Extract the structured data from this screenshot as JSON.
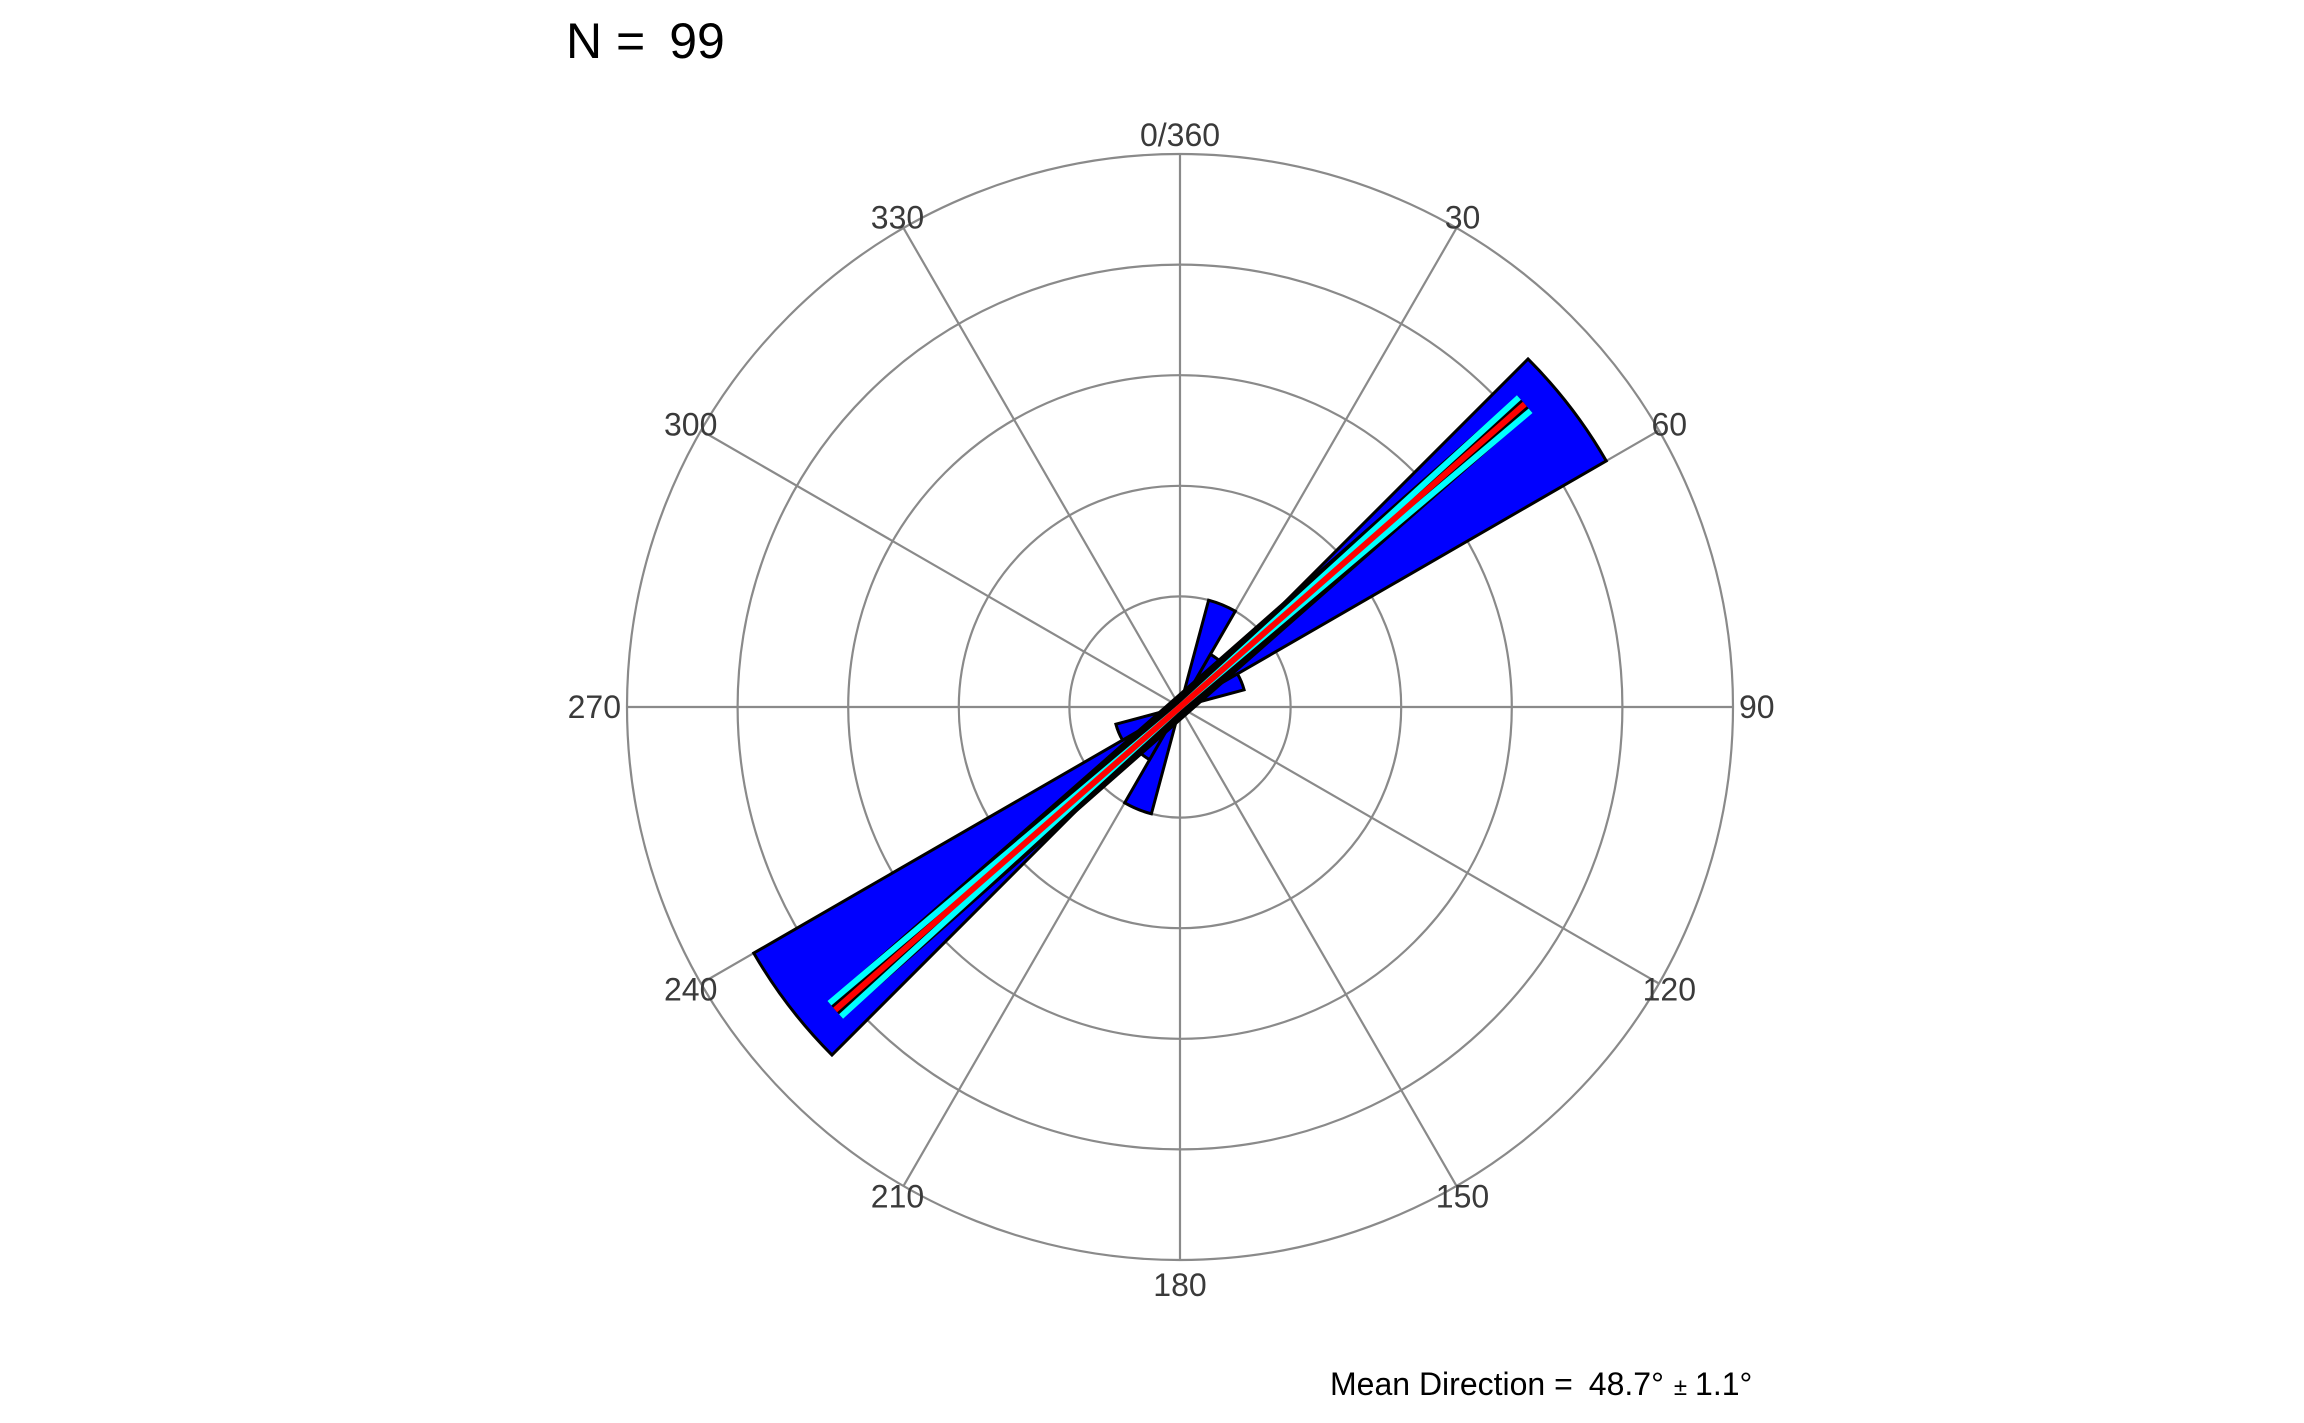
{
  "header": {
    "n_label": "N =",
    "n_value": "99"
  },
  "footer": {
    "mean_label": "Mean Direction =",
    "mean_value": "48.7°",
    "mean_pm": "±",
    "mean_error": "1.1°"
  },
  "chart_data": {
    "type": "rose",
    "title": "",
    "direction_tick_labels": [
      {
        "angle": 0,
        "label": "0/360"
      },
      {
        "angle": 30,
        "label": "30"
      },
      {
        "angle": 60,
        "label": "60"
      },
      {
        "angle": 90,
        "label": "90"
      },
      {
        "angle": 120,
        "label": "120"
      },
      {
        "angle": 150,
        "label": "150"
      },
      {
        "angle": 180,
        "label": "180"
      },
      {
        "angle": 210,
        "label": "210"
      },
      {
        "angle": 240,
        "label": "240"
      },
      {
        "angle": 270,
        "label": "270"
      },
      {
        "angle": 300,
        "label": "300"
      },
      {
        "angle": 330,
        "label": "330"
      }
    ],
    "radial_grid": [
      1,
      2,
      3,
      4,
      5
    ],
    "radial_max": 5,
    "bin_width_deg": 15,
    "axial": true,
    "bins": [
      {
        "start": 15,
        "end": 30,
        "value": 1.0
      },
      {
        "start": 30,
        "end": 45,
        "value": 0.55
      },
      {
        "start": 45,
        "end": 60,
        "value": 4.45
      },
      {
        "start": 60,
        "end": 75,
        "value": 0.6
      },
      {
        "start": 195,
        "end": 210,
        "value": 1.0
      },
      {
        "start": 210,
        "end": 225,
        "value": 0.55
      },
      {
        "start": 225,
        "end": 240,
        "value": 4.45
      },
      {
        "start": 240,
        "end": 255,
        "value": 0.6
      }
    ],
    "mean_direction": 48.7,
    "mean_error": 1.1,
    "n": 99,
    "colors": {
      "petal_fill": "#0000ff",
      "petal_stroke": "#000000",
      "mean_line": "#ff0000",
      "error_lines": "#00ffff",
      "grid": "#8a8a8a"
    }
  }
}
